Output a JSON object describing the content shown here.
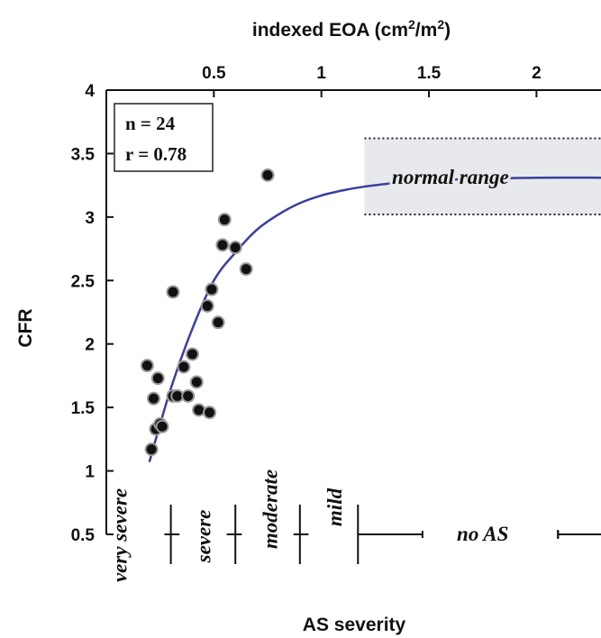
{
  "chart_data": {
    "type": "scatter",
    "title_top_axis": "indexed EOA (cm",
    "title_top_axis_sup1": "2",
    "title_top_axis_mid": "/m",
    "title_top_axis_sup2": "2",
    "title_top_axis_end": ")",
    "ylabel": "CFR",
    "xlabel": "AS severity",
    "xlim": [
      0.0,
      2.3
    ],
    "ylim": [
      0.5,
      4.0
    ],
    "x_ticks": [
      {
        "value": 0.5,
        "label": "0.5"
      },
      {
        "value": 1.0,
        "label": "1"
      },
      {
        "value": 1.5,
        "label": "1.5"
      },
      {
        "value": 2.0,
        "label": "2"
      }
    ],
    "y_ticks": [
      {
        "value": 0.5,
        "label": "0.5"
      },
      {
        "value": 1.0,
        "label": "1"
      },
      {
        "value": 1.5,
        "label": "1.5"
      },
      {
        "value": 2.0,
        "label": "2"
      },
      {
        "value": 2.5,
        "label": "2.5"
      },
      {
        "value": 3.0,
        "label": "3"
      },
      {
        "value": 3.5,
        "label": "3.5"
      },
      {
        "value": 4.0,
        "label": "4"
      }
    ],
    "stats": {
      "n_label": "n = 24",
      "r_label": "r = 0.78"
    },
    "points": [
      {
        "x": 0.19,
        "y": 1.83
      },
      {
        "x": 0.21,
        "y": 1.17
      },
      {
        "x": 0.22,
        "y": 1.57
      },
      {
        "x": 0.23,
        "y": 1.33
      },
      {
        "x": 0.24,
        "y": 1.73
      },
      {
        "x": 0.25,
        "y": 1.37
      },
      {
        "x": 0.26,
        "y": 1.35
      },
      {
        "x": 0.31,
        "y": 2.41
      },
      {
        "x": 0.31,
        "y": 1.59
      },
      {
        "x": 0.33,
        "y": 1.59
      },
      {
        "x": 0.36,
        "y": 1.82
      },
      {
        "x": 0.38,
        "y": 1.59
      },
      {
        "x": 0.4,
        "y": 1.92
      },
      {
        "x": 0.42,
        "y": 1.7
      },
      {
        "x": 0.43,
        "y": 1.48
      },
      {
        "x": 0.47,
        "y": 2.3
      },
      {
        "x": 0.48,
        "y": 1.46
      },
      {
        "x": 0.49,
        "y": 2.43
      },
      {
        "x": 0.52,
        "y": 2.17
      },
      {
        "x": 0.54,
        "y": 2.78
      },
      {
        "x": 0.55,
        "y": 2.98
      },
      {
        "x": 0.6,
        "y": 2.76
      },
      {
        "x": 0.65,
        "y": 2.59
      },
      {
        "x": 0.75,
        "y": 3.33
      }
    ],
    "fit_curve": {
      "color": "#3a3f9e",
      "x": [
        0.2,
        0.3,
        0.4,
        0.5,
        0.6,
        0.7,
        0.8,
        0.9,
        1.0,
        1.1,
        1.2,
        1.35,
        1.5,
        1.7,
        2.0,
        2.3
      ],
      "y": [
        1.07,
        1.65,
        2.12,
        2.5,
        2.72,
        2.9,
        3.02,
        3.11,
        3.17,
        3.21,
        3.24,
        3.27,
        3.29,
        3.3,
        3.31,
        3.31
      ]
    },
    "normal_range": {
      "label": "normal range",
      "x_start": 1.2,
      "x_end": 2.3,
      "y_low": 3.02,
      "y_high": 3.62,
      "fill": "#e8e9ed"
    },
    "severity_scale": {
      "y": 0.5,
      "categories": [
        {
          "label": "very severe",
          "x_center": 0.06
        },
        {
          "label": "severe",
          "x_center": 0.45
        },
        {
          "label": "moderate",
          "x_center": 0.76
        },
        {
          "label": "mild",
          "x_center": 1.06
        },
        {
          "label": "no AS",
          "x_center": 1.75
        }
      ],
      "dividers": [
        0.3,
        0.6,
        0.9,
        1.17,
        2.1
      ],
      "segments": [
        [
          0.27,
          0.34
        ],
        [
          0.56,
          0.63
        ],
        [
          0.87,
          0.94
        ],
        [
          1.17,
          1.47
        ],
        [
          2.1,
          2.3
        ]
      ],
      "small_ticks": [
        1.47,
        2.1
      ]
    }
  }
}
